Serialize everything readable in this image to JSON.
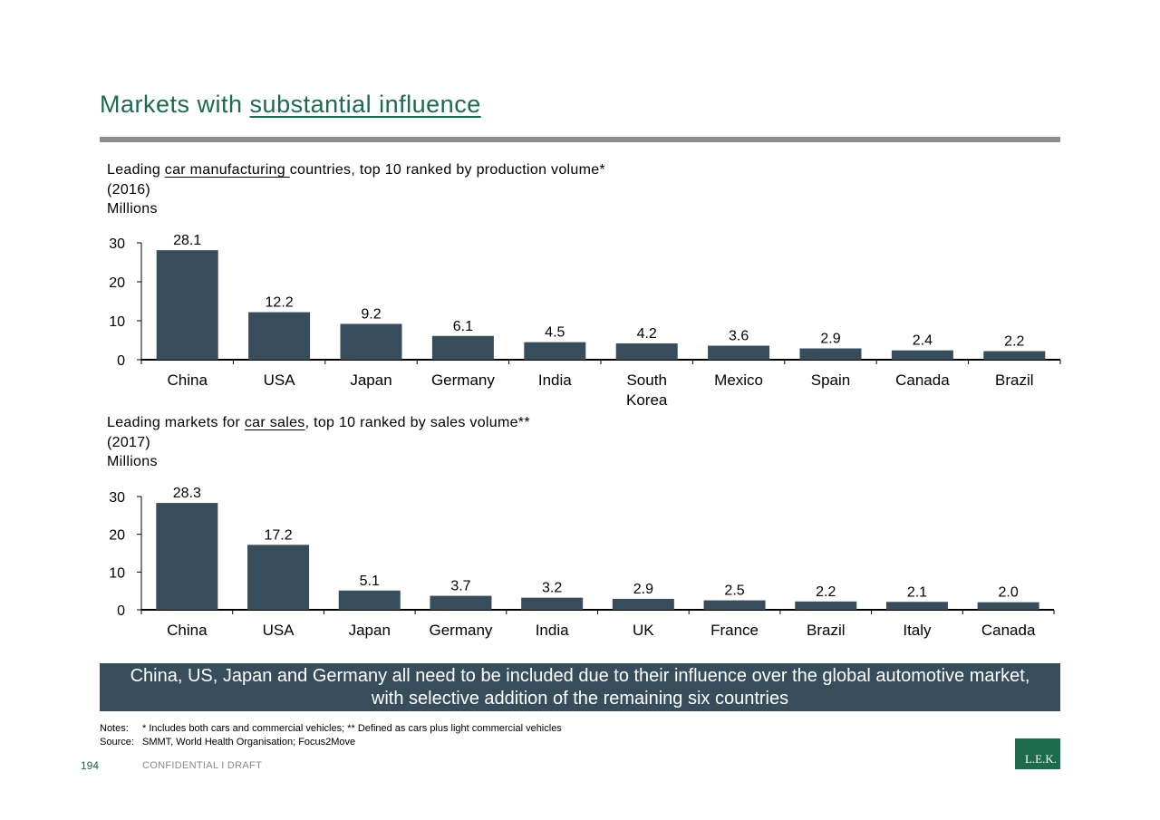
{
  "page": {
    "title_plain": "Markets with ",
    "title_underlined": "substantial influence",
    "banner": "China, US, Japan and Germany all need to be included due to their influence over the global automotive market, with selective addition of the remaining six countries",
    "notes_label": "Notes:",
    "notes_text": "* Includes both cars and commercial vehicles; ** Defined as cars plus light commercial vehicles",
    "source_label": "Source:",
    "source_text": "SMMT, World Health Organisation; Focus2Move",
    "page_number": "194",
    "footer_label": "CONFIDENTIAL I DRAFT",
    "logo_text": "L.E.K.",
    "bar_color": "#374d5c",
    "accent_color": "#1b6b4c"
  },
  "charts": [
    {
      "head_pre": "Leading ",
      "head_underlined": "car manufacturing ",
      "head_post": "countries, top 10 ranked by production volume*",
      "year": "(2016)",
      "unit": "Millions"
    },
    {
      "head_pre": "Leading markets for ",
      "head_underlined": "car sales",
      "head_post": ", top 10 ranked by sales volume**",
      "year": "(2017)",
      "unit": "Millions"
    }
  ],
  "chart_data": [
    {
      "type": "bar",
      "title": "Leading car manufacturing countries, top 10 ranked by production volume* (2016)",
      "ylabel": "Millions",
      "ylim": [
        0,
        30
      ],
      "yticks": [
        0,
        10,
        20,
        30
      ],
      "categories": [
        [
          "China"
        ],
        [
          "USA"
        ],
        [
          "Japan"
        ],
        [
          "Germany"
        ],
        [
          "India"
        ],
        [
          "South",
          "Korea"
        ],
        [
          "Mexico"
        ],
        [
          "Spain"
        ],
        [
          "Canada"
        ],
        [
          "Brazil"
        ]
      ],
      "values": [
        28.1,
        12.2,
        9.2,
        6.1,
        4.5,
        4.2,
        3.6,
        2.9,
        2.4,
        2.2
      ],
      "value_labels": [
        "28.1",
        "12.2",
        "9.2",
        "6.1",
        "4.5",
        "4.2",
        "3.6",
        "2.9",
        "2.4",
        "2.2"
      ],
      "grid": false,
      "legend": "none"
    },
    {
      "type": "bar",
      "title": "Leading markets for car sales, top 10 ranked by sales volume** (2017)",
      "ylabel": "Millions",
      "ylim": [
        0,
        30
      ],
      "yticks": [
        0,
        10,
        20,
        30
      ],
      "categories": [
        [
          "China"
        ],
        [
          "USA"
        ],
        [
          "Japan"
        ],
        [
          "Germany"
        ],
        [
          "India"
        ],
        [
          "UK"
        ],
        [
          "France"
        ],
        [
          "Brazil"
        ],
        [
          "Italy"
        ],
        [
          "Canada"
        ]
      ],
      "values": [
        28.3,
        17.2,
        5.1,
        3.7,
        3.2,
        2.9,
        2.5,
        2.2,
        2.1,
        2.0
      ],
      "value_labels": [
        "28.3",
        "17.2",
        "5.1",
        "3.7",
        "3.2",
        "2.9",
        "2.5",
        "2.2",
        "2.1",
        "2.0"
      ],
      "grid": false,
      "legend": "none"
    }
  ]
}
